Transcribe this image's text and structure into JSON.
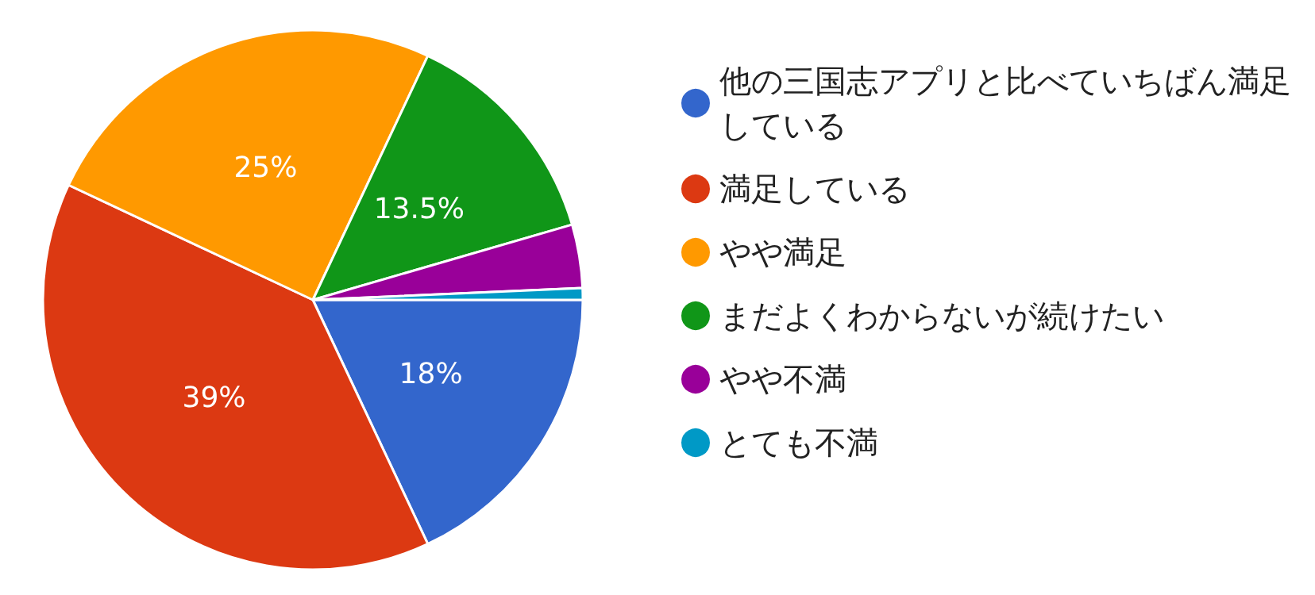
{
  "chart_data": {
    "type": "pie",
    "categories": [
      "他の三国志アプリと比べていちばん満足している",
      "満足している",
      "やや満足",
      "まだよくわからないが続けたい",
      "やや不満",
      "とても不満"
    ],
    "values": [
      18,
      39,
      25,
      13.5,
      3.8,
      0.7
    ],
    "colors": [
      "#3366cc",
      "#dc3912",
      "#ff9900",
      "#109618",
      "#990099",
      "#0099c6"
    ],
    "value_labels": [
      "18%",
      "39%",
      "25%",
      "13.5%",
      null,
      null
    ],
    "legend": "right"
  }
}
